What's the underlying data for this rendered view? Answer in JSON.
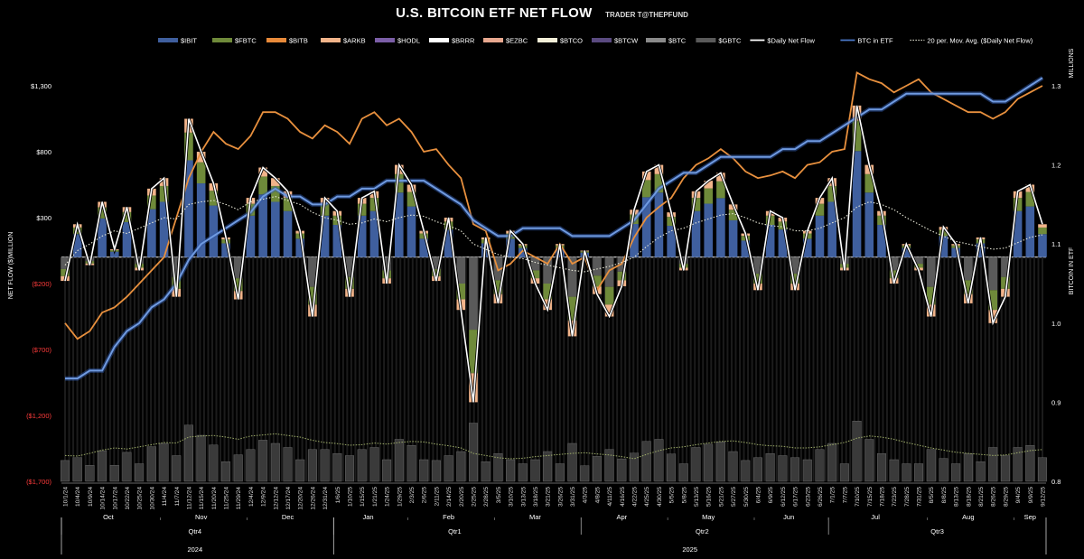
{
  "chart_data": {
    "type": "bar",
    "title": "U.S. BITCOIN ETF NET FLOW",
    "subtitle": "TRADER T@THEPFUND",
    "ylabel": "NET FLOW ($)MILLION",
    "y2label": "BITCOIN IN ETF",
    "y2unit": "MILLIONS",
    "ylim": [
      -1700,
      1300
    ],
    "y2lim": [
      0.8,
      1.3
    ],
    "y_ticks": [
      "$1,300",
      "$800",
      "$300",
      "($200)",
      "($700)",
      "($1,200)",
      "($1,700)"
    ],
    "y_tick_values": [
      1300,
      800,
      300,
      -200,
      -700,
      -1200,
      -1700
    ],
    "y2_ticks": [
      "1.3",
      "1.2",
      "1.1",
      "1.0",
      "0.9",
      "0.8"
    ],
    "y2_tick_values": [
      1.3,
      1.2,
      1.1,
      1.0,
      0.9,
      0.8
    ],
    "legend": [
      {
        "label": "$IBIT",
        "color": "#3f5f9e",
        "kind": "bar"
      },
      {
        "label": "$FBTC",
        "color": "#6f8a3a",
        "kind": "bar"
      },
      {
        "label": "$BITB",
        "color": "#e88a3a",
        "kind": "bar"
      },
      {
        "label": "$ARKB",
        "color": "#f2b48a",
        "kind": "bar"
      },
      {
        "label": "$HODL",
        "color": "#7b5ea7",
        "kind": "bar"
      },
      {
        "label": "$BRRR",
        "color": "#ffffff",
        "kind": "bar"
      },
      {
        "label": "$EZBC",
        "color": "#e8a88f",
        "kind": "bar"
      },
      {
        "label": "$BTCO",
        "color": "#f3efd8",
        "kind": "bar"
      },
      {
        "label": "$BTCW",
        "color": "#5a4a80",
        "kind": "bar"
      },
      {
        "label": "$BTC",
        "color": "#8a8a8a",
        "kind": "bar"
      },
      {
        "label": "$GBTC",
        "color": "#5a5a5a",
        "kind": "bar"
      },
      {
        "label": "$Daily Net Flow",
        "color": "#ffffff",
        "kind": "line"
      },
      {
        "label": "BTC in ETF",
        "color": "#4a78c8",
        "kind": "line"
      },
      {
        "label": "20 per. Mov. Avg. ($Daily Net Flow)",
        "color": "#d8d8c8",
        "kind": "dotted"
      }
    ],
    "x_dates": [
      "10/1/24",
      "10/4/24",
      "10/9/24",
      "10/14/24",
      "10/17/24",
      "10/22/24",
      "10/25/24",
      "10/30/24",
      "11/4/24",
      "11/7/24",
      "11/12/24",
      "11/15/24",
      "11/20/24",
      "11/25/24",
      "11/29/24",
      "12/4/24",
      "12/9/24",
      "12/12/24",
      "12/17/24",
      "12/20/24",
      "12/26/24",
      "12/31/24",
      "1/6/25",
      "1/10/25",
      "1/15/25",
      "1/21/25",
      "1/24/25",
      "1/29/25",
      "2/3/25",
      "2/6/25",
      "2/11/25",
      "2/14/25",
      "2/20/25",
      "2/25/25",
      "2/28/25",
      "3/5/25",
      "3/10/25",
      "3/13/25",
      "3/18/25",
      "3/21/25",
      "3/26/25",
      "3/31/25",
      "4/3/25",
      "4/8/25",
      "4/11/25",
      "4/16/25",
      "4/22/25",
      "4/25/25",
      "4/30/25",
      "5/5/25",
      "5/8/25",
      "5/13/25",
      "5/16/25",
      "5/21/25",
      "5/27/25",
      "5/30/25",
      "6/4/25",
      "6/9/25",
      "6/12/25",
      "6/17/25",
      "6/23/25",
      "6/26/25",
      "7/1/25",
      "7/7/25",
      "7/10/25",
      "7/15/25",
      "7/18/25",
      "7/23/25",
      "7/28/25",
      "7/31/25",
      "8/5/25",
      "8/8/25",
      "8/13/25",
      "8/18/25",
      "8/21/25",
      "8/26/25",
      "8/29/25",
      "9/4/25",
      "9/9/25",
      "9/12/25"
    ],
    "months": [
      "Oct",
      "Nov",
      "Dec",
      "Jan",
      "Feb",
      "Mar",
      "Apr",
      "May",
      "Jun",
      "Jul",
      "Aug",
      "Sep"
    ],
    "quarters": [
      "Qtr4",
      "Qtr1",
      "Qtr2",
      "Qtr3"
    ],
    "years": [
      "2024",
      "2025"
    ],
    "daily_net_flow": [
      -180,
      250,
      -60,
      420,
      60,
      380,
      -100,
      520,
      600,
      -300,
      1050,
      800,
      560,
      150,
      -320,
      450,
      680,
      600,
      500,
      200,
      -450,
      450,
      350,
      -300,
      450,
      500,
      -200,
      700,
      550,
      200,
      -180,
      300,
      -400,
      -1100,
      150,
      -350,
      200,
      100,
      -200,
      -400,
      100,
      -600,
      50,
      -280,
      -450,
      -220,
      360,
      650,
      700,
      340,
      -100,
      500,
      580,
      640,
      400,
      180,
      -250,
      350,
      300,
      -250,
      200,
      450,
      600,
      -100,
      1150,
      700,
      350,
      -200,
      100,
      -100,
      -450,
      230,
      100,
      -350,
      150,
      -500,
      -300,
      500,
      550,
      250
    ],
    "moving_avg": [
      -60,
      50,
      100,
      160,
      200,
      180,
      220,
      260,
      300,
      290,
      400,
      420,
      430,
      400,
      360,
      420,
      440,
      460,
      430,
      400,
      340,
      300,
      280,
      250,
      260,
      290,
      270,
      300,
      320,
      310,
      270,
      240,
      200,
      100,
      60,
      20,
      0,
      -10,
      -40,
      -60,
      -80,
      -100,
      -110,
      -90,
      -70,
      -40,
      0,
      80,
      150,
      200,
      220,
      260,
      290,
      320,
      330,
      300,
      260,
      240,
      230,
      200,
      200,
      220,
      260,
      300,
      380,
      420,
      400,
      360,
      300,
      250,
      200,
      160,
      120,
      100,
      80,
      60,
      70,
      110,
      150,
      170
    ],
    "btc_in_etf": [
      0.93,
      0.93,
      0.94,
      0.94,
      0.97,
      0.99,
      1.0,
      1.02,
      1.03,
      1.05,
      1.08,
      1.1,
      1.11,
      1.12,
      1.13,
      1.14,
      1.16,
      1.17,
      1.16,
      1.16,
      1.15,
      1.15,
      1.16,
      1.16,
      1.17,
      1.17,
      1.18,
      1.18,
      1.18,
      1.18,
      1.17,
      1.16,
      1.15,
      1.13,
      1.12,
      1.11,
      1.11,
      1.12,
      1.12,
      1.12,
      1.12,
      1.11,
      1.11,
      1.11,
      1.11,
      1.12,
      1.13,
      1.15,
      1.17,
      1.18,
      1.19,
      1.19,
      1.2,
      1.21,
      1.21,
      1.21,
      1.21,
      1.21,
      1.22,
      1.22,
      1.23,
      1.23,
      1.24,
      1.25,
      1.26,
      1.27,
      1.27,
      1.28,
      1.29,
      1.29,
      1.29,
      1.29,
      1.29,
      1.29,
      1.29,
      1.28,
      1.28,
      1.29,
      1.3,
      1.31
    ],
    "btc_price_overlay": [
      -500,
      -620,
      -560,
      -420,
      -380,
      -300,
      -200,
      -100,
      0,
      300,
      600,
      800,
      950,
      860,
      820,
      920,
      1100,
      1100,
      1050,
      950,
      900,
      1000,
      950,
      860,
      1050,
      1100,
      1000,
      1050,
      950,
      800,
      820,
      700,
      600,
      250,
      200,
      -100,
      -50,
      50,
      0,
      -50,
      100,
      -50,
      0,
      -250,
      -100,
      -50,
      150,
      300,
      380,
      450,
      600,
      700,
      750,
      820,
      750,
      650,
      600,
      620,
      650,
      600,
      700,
      720,
      800,
      820,
      1400,
      1350,
      1320,
      1250,
      1300,
      1350,
      1250,
      1200,
      1150,
      1100,
      1100,
      1050,
      1100,
      1200,
      1250,
      1300
    ]
  }
}
